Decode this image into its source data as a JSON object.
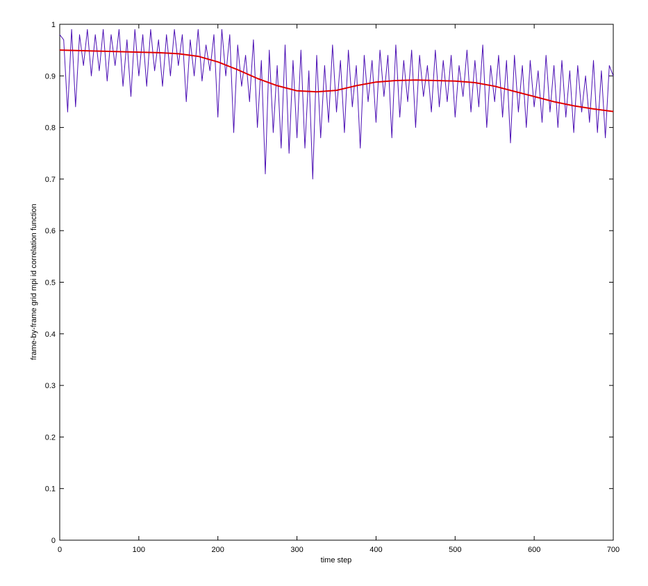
{
  "chart_data": {
    "type": "line",
    "xlabel": "time step",
    "ylabel": "frame-by-frame grid mpi id correlation function",
    "xlim": [
      0,
      700
    ],
    "ylim": [
      0,
      1
    ],
    "x_ticks": [
      0,
      100,
      200,
      300,
      400,
      500,
      600,
      700
    ],
    "y_ticks": [
      0,
      0.1,
      0.2,
      0.3,
      0.4,
      0.5,
      0.6,
      0.7,
      0.8,
      0.9,
      1
    ],
    "grid": false,
    "legend": "none",
    "series": [
      {
        "color": "#4b0fb4",
        "x": [
          0,
          5,
          10,
          15,
          20,
          25,
          30,
          35,
          40,
          45,
          50,
          55,
          60,
          65,
          70,
          75,
          80,
          85,
          90,
          95,
          100,
          105,
          110,
          115,
          120,
          125,
          130,
          135,
          140,
          145,
          150,
          155,
          160,
          165,
          170,
          175,
          180,
          185,
          190,
          195,
          200,
          205,
          210,
          215,
          220,
          225,
          230,
          235,
          240,
          245,
          250,
          255,
          260,
          265,
          270,
          275,
          280,
          285,
          290,
          295,
          300,
          305,
          310,
          315,
          320,
          325,
          330,
          335,
          340,
          345,
          350,
          355,
          360,
          365,
          370,
          375,
          380,
          385,
          390,
          395,
          400,
          405,
          410,
          415,
          420,
          425,
          430,
          435,
          440,
          445,
          450,
          455,
          460,
          465,
          470,
          475,
          480,
          485,
          490,
          495,
          500,
          505,
          510,
          515,
          520,
          525,
          530,
          535,
          540,
          545,
          550,
          555,
          560,
          565,
          570,
          575,
          580,
          585,
          590,
          595,
          600,
          605,
          610,
          615,
          620,
          625,
          630,
          635,
          640,
          645,
          650,
          655,
          660,
          665,
          670,
          675,
          680,
          685,
          690,
          695,
          700
        ],
        "values": [
          0.98,
          0.97,
          0.83,
          0.99,
          0.84,
          0.98,
          0.92,
          0.99,
          0.9,
          0.98,
          0.91,
          0.99,
          0.89,
          0.98,
          0.92,
          0.99,
          0.88,
          0.97,
          0.86,
          0.99,
          0.9,
          0.98,
          0.88,
          0.99,
          0.91,
          0.97,
          0.88,
          0.98,
          0.9,
          0.99,
          0.92,
          0.98,
          0.85,
          0.97,
          0.9,
          0.99,
          0.89,
          0.96,
          0.91,
          0.98,
          0.82,
          0.99,
          0.9,
          0.98,
          0.79,
          0.96,
          0.88,
          0.94,
          0.85,
          0.97,
          0.8,
          0.93,
          0.71,
          0.95,
          0.79,
          0.92,
          0.76,
          0.96,
          0.75,
          0.93,
          0.78,
          0.95,
          0.76,
          0.91,
          0.7,
          0.94,
          0.78,
          0.92,
          0.81,
          0.96,
          0.83,
          0.93,
          0.79,
          0.95,
          0.84,
          0.92,
          0.76,
          0.94,
          0.85,
          0.93,
          0.81,
          0.95,
          0.86,
          0.94,
          0.78,
          0.96,
          0.82,
          0.93,
          0.85,
          0.95,
          0.8,
          0.94,
          0.86,
          0.92,
          0.83,
          0.95,
          0.84,
          0.93,
          0.85,
          0.94,
          0.82,
          0.92,
          0.86,
          0.95,
          0.83,
          0.93,
          0.84,
          0.96,
          0.8,
          0.92,
          0.85,
          0.94,
          0.82,
          0.93,
          0.77,
          0.94,
          0.83,
          0.92,
          0.8,
          0.93,
          0.84,
          0.91,
          0.81,
          0.94,
          0.83,
          0.92,
          0.8,
          0.93,
          0.82,
          0.91,
          0.79,
          0.92,
          0.83,
          0.9,
          0.81,
          0.93,
          0.79,
          0.91,
          0.78,
          0.92,
          0.9
        ]
      },
      {
        "color": "#e00000",
        "x": [
          0,
          25,
          50,
          75,
          100,
          125,
          150,
          175,
          200,
          225,
          250,
          275,
          300,
          325,
          350,
          375,
          400,
          425,
          450,
          475,
          500,
          525,
          550,
          575,
          600,
          625,
          650,
          675,
          700
        ],
        "values": [
          0.95,
          0.949,
          0.948,
          0.947,
          0.946,
          0.945,
          0.943,
          0.938,
          0.927,
          0.912,
          0.895,
          0.881,
          0.871,
          0.869,
          0.872,
          0.881,
          0.888,
          0.891,
          0.892,
          0.891,
          0.89,
          0.887,
          0.88,
          0.87,
          0.86,
          0.85,
          0.842,
          0.836,
          0.831
        ]
      }
    ]
  }
}
